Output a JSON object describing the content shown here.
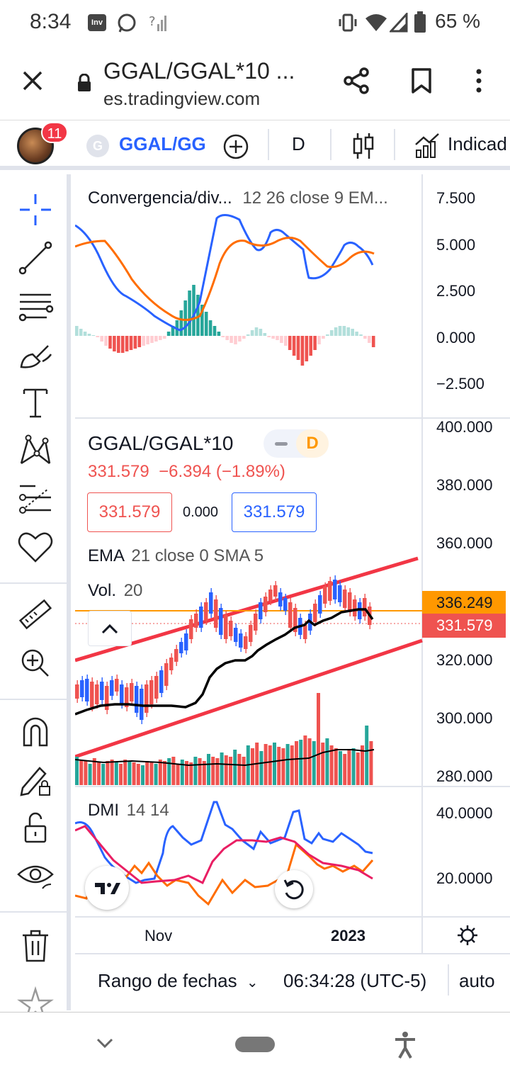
{
  "status": {
    "time": "8:34",
    "battery": "65 %",
    "app_icon": "Inv"
  },
  "browser": {
    "title": "GGAL/GGAL*10 ...",
    "url": "es.tradingview.com"
  },
  "toolbar": {
    "avatar_badge": "11",
    "symbol_initial": "G",
    "symbol": "GGAL/GG",
    "interval": "D",
    "indicators": "Indicad"
  },
  "macd": {
    "title": "Convergencia/div...",
    "params": "12 26 close 9 EM...",
    "axis": [
      "7.500",
      "5.000",
      "2.500",
      "0.000",
      "−2.500"
    ]
  },
  "main": {
    "symbol": "GGAL/GGAL*10",
    "badge": "D",
    "price": "331.579",
    "change": "−6.394 (−1.89%)",
    "bid": "331.579",
    "spread": "0.000",
    "ask": "331.579",
    "ema_label": "EMA",
    "ema_params": "21 close 0 SMA 5",
    "vol_label": "Vol.",
    "vol_param": "20",
    "axis": [
      "400.000",
      "380.000",
      "360.000",
      "320.000",
      "300.000",
      "280.000"
    ],
    "orange_price": "336.249",
    "last_price": "331.579"
  },
  "dmi": {
    "label": "DMI",
    "params": "14 14",
    "axis": [
      "40.0000",
      "20.0000"
    ]
  },
  "time_axis": {
    "nov": "Nov",
    "year": "2023"
  },
  "footer": {
    "range": "Rango de fechas",
    "clock": "06:34:28 (UTC-5)",
    "auto": "auto"
  },
  "colors": {
    "blue": "#2962ff",
    "orange": "#ff6d00",
    "red": "#ef5350",
    "green": "#26a69a",
    "accent": "#2962ff",
    "price_orange": "#ff9800"
  }
}
